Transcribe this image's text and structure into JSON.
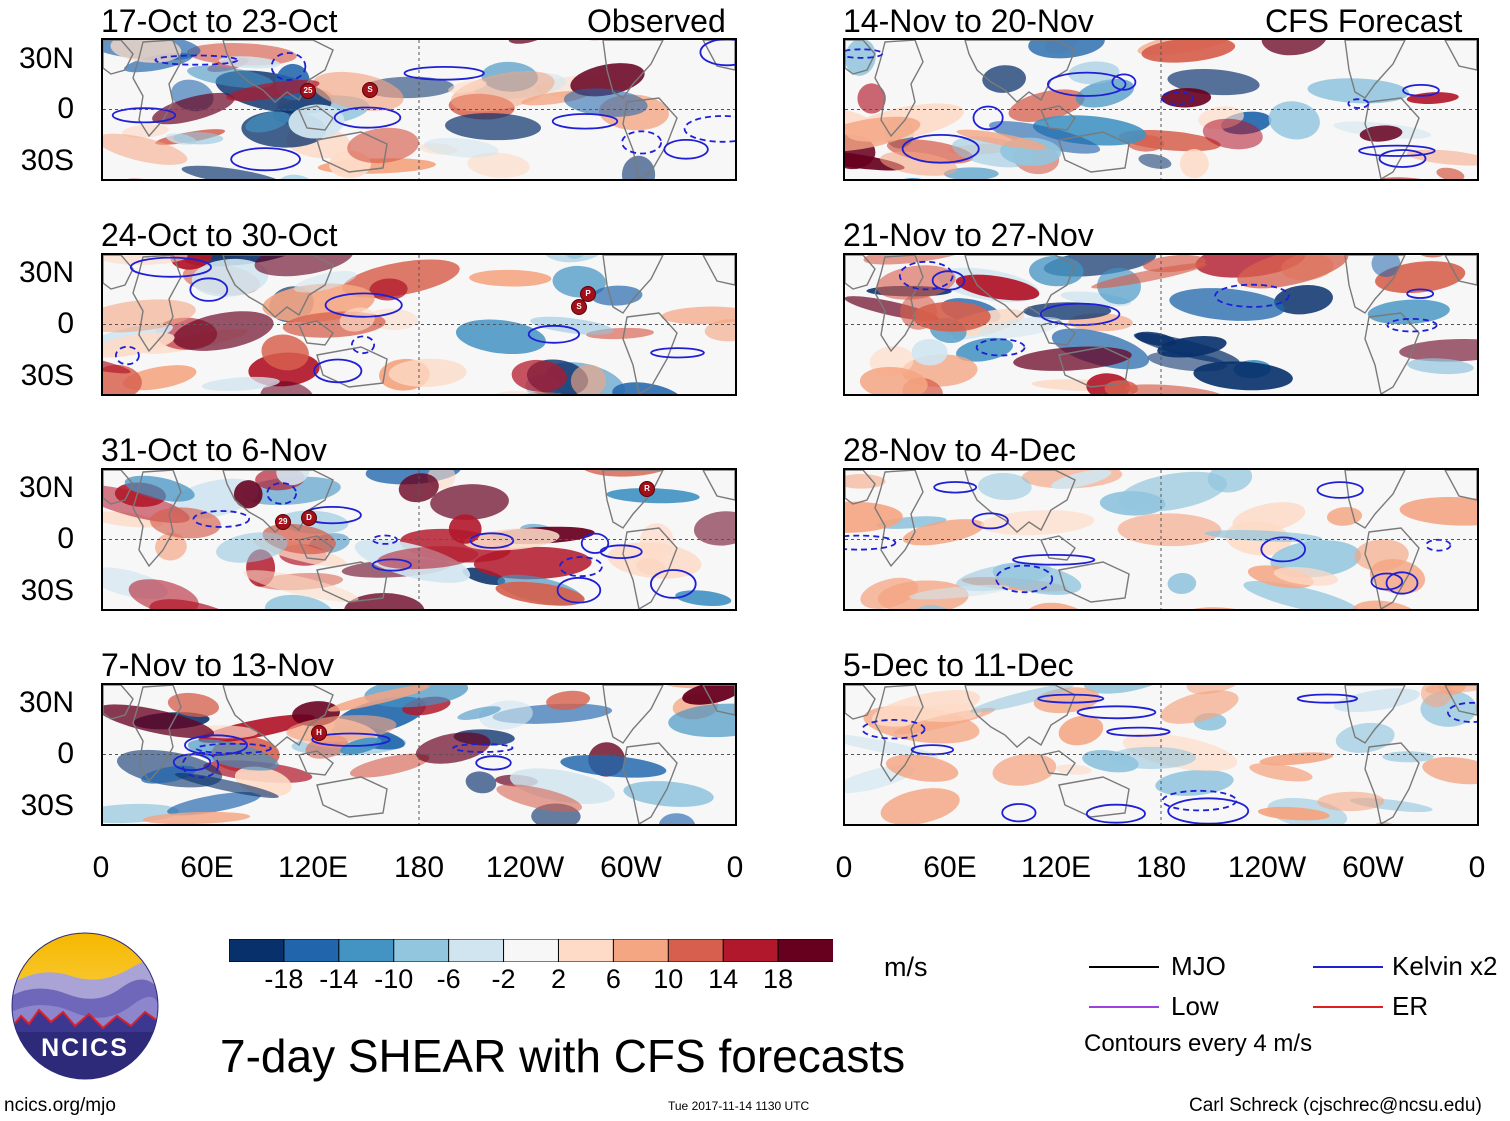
{
  "chart_data": {
    "type": "heatmap",
    "title": "7-day SHEAR with CFS forecasts",
    "variable": "SHEAR",
    "units": "m/s",
    "colorbar": {
      "ticks": [
        "-18",
        "-14",
        "-10",
        "-6",
        "-2",
        "2",
        "6",
        "10",
        "14",
        "18"
      ],
      "colors": [
        "#08306b",
        "#2166ac",
        "#4393c3",
        "#92c5de",
        "#d1e5f0",
        "#f7f7f7",
        "#fddbc7",
        "#f4a582",
        "#d6604d",
        "#b2182b",
        "#67001f"
      ]
    },
    "x_ticks": [
      "0",
      "60E",
      "120E",
      "180",
      "120W",
      "60W",
      "0"
    ],
    "y_ticks": [
      "30N",
      "0",
      "30S"
    ],
    "columns": [
      {
        "label": "Observed",
        "panels": [
          {
            "period": "17-Oct to 23-Oct",
            "storms": [
              "25",
              "S"
            ]
          },
          {
            "period": "24-Oct to 30-Oct",
            "storms": [
              "S",
              "P"
            ]
          },
          {
            "period": "31-Oct to 6-Nov",
            "storms": [
              "29",
              "D",
              "R"
            ]
          },
          {
            "period": "7-Nov to 13-Nov",
            "storms": [
              "H"
            ]
          }
        ]
      },
      {
        "label": "CFS Forecast",
        "panels": [
          {
            "period": "14-Nov to 20-Nov"
          },
          {
            "period": "21-Nov to 27-Nov"
          },
          {
            "period": "28-Nov to 4-Dec"
          },
          {
            "period": "5-Dec to 11-Dec"
          }
        ]
      }
    ],
    "legend": [
      {
        "label": "MJO",
        "color": "#000000"
      },
      {
        "label": "Kelvin x2",
        "color": "#1f1fd6"
      },
      {
        "label": "Low",
        "color": "#a040e0"
      },
      {
        "label": "ER",
        "color": "#e02020"
      }
    ],
    "contour_note": "Contours every 4 m/s"
  },
  "logo": {
    "text": "NCICS"
  },
  "footer": {
    "url": "ncics.org/mjo",
    "timestamp": "Tue 2017-11-14 1130 UTC",
    "credit": "Carl Schreck (cjschrec@ncsu.edu)"
  }
}
